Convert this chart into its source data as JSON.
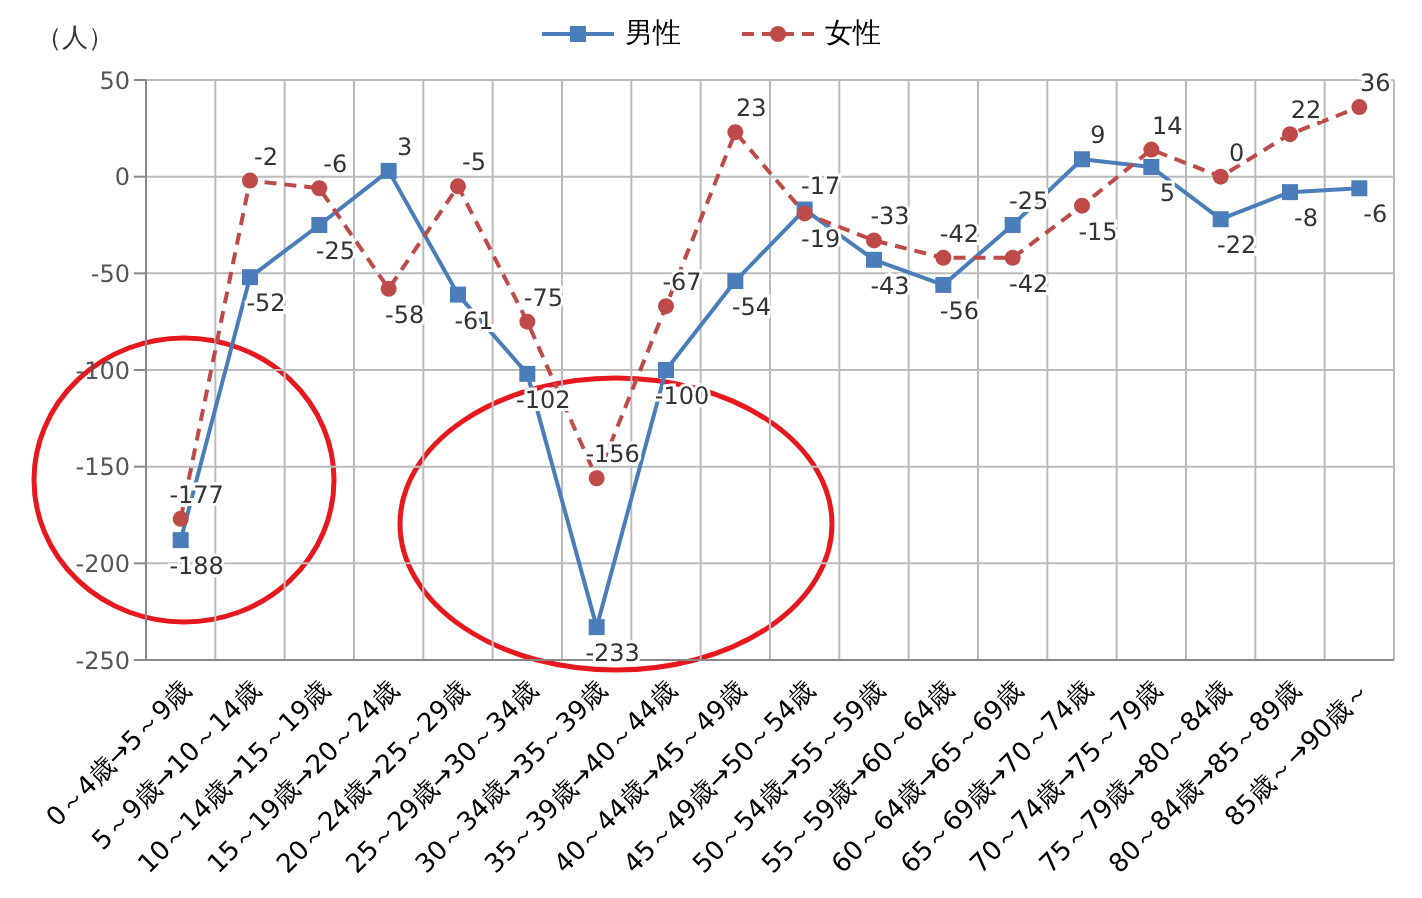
{
  "chart_data": {
    "type": "line",
    "ylabel": "（人）",
    "categories": [
      "0～4歳→5～9歳",
      "5～9歳→10～14歳",
      "10～14歳→15～19歳",
      "15～19歳→20～24歳",
      "20～24歳→25～29歳",
      "25～29歳→30～34歳",
      "30～34歳→35～39歳",
      "35～39歳→40～44歳",
      "40～44歳→45～49歳",
      "45～49歳→50～54歳",
      "50～54歳→55～59歳",
      "55～59歳→60～64歳",
      "60～64歳→65～69歳",
      "65～69歳→70～74歳",
      "70～74歳→75～79歳",
      "75～79歳→80～84歳",
      "80～84歳→85～89歳",
      "85歳～→90歳～"
    ],
    "series": [
      {
        "name": "男性",
        "color": "#4a7ebb",
        "marker": "square",
        "line_style": "solid",
        "values": [
          -188,
          -52,
          -25,
          3,
          -61,
          -102,
          -233,
          -100,
          -54,
          -17,
          -43,
          -56,
          -25,
          9,
          5,
          -22,
          -8,
          -6
        ]
      },
      {
        "name": "女性",
        "color": "#be4b48",
        "marker": "circle",
        "line_style": "dashed",
        "values": [
          -177,
          -2,
          -6,
          -58,
          -5,
          -75,
          -156,
          -67,
          23,
          -19,
          -33,
          -42,
          -42,
          -15,
          14,
          0,
          22,
          36
        ]
      }
    ],
    "ylim": [
      -250,
      50
    ],
    "yticks": [
      -250,
      -200,
      -150,
      -100,
      -50,
      0,
      50
    ],
    "grid": true,
    "legend": "top",
    "data_labels": true
  }
}
